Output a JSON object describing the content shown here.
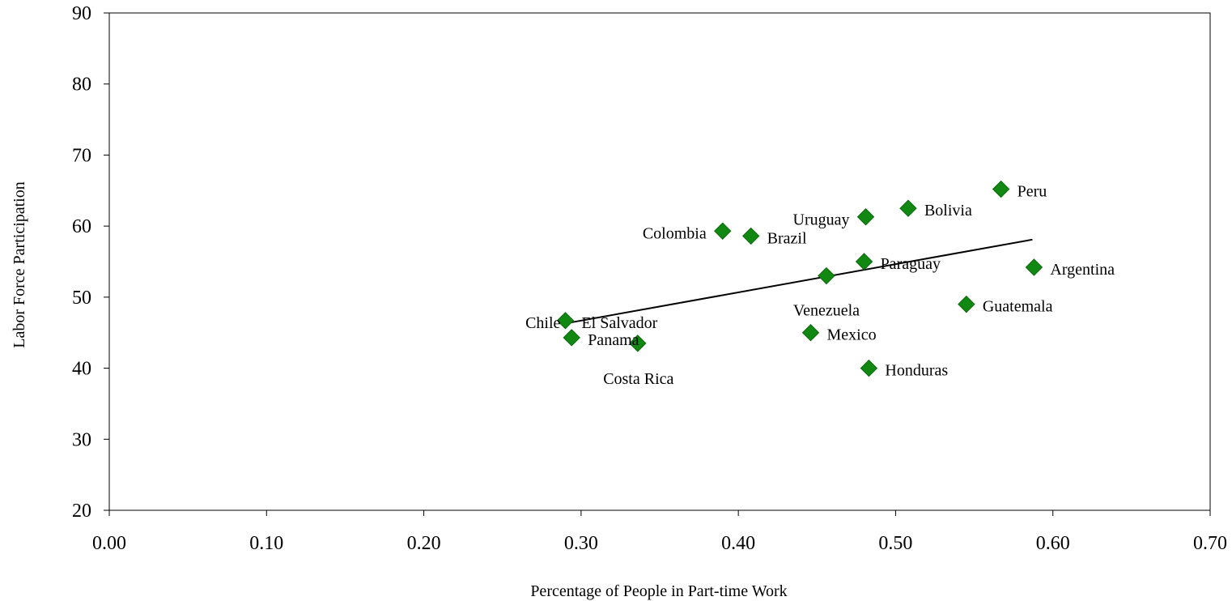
{
  "chart_data": {
    "type": "scatter",
    "title": "",
    "xlabel": "Percentage of People in Part-time Work",
    "ylabel": "Labor Force Participation",
    "xlim": [
      0.0,
      0.7
    ],
    "ylim": [
      20,
      90
    ],
    "x_ticks": [
      "0.00",
      "0.10",
      "0.20",
      "0.30",
      "0.40",
      "0.50",
      "0.60",
      "0.70"
    ],
    "y_ticks": [
      "20",
      "30",
      "40",
      "50",
      "60",
      "70",
      "80",
      "90"
    ],
    "grid": false,
    "legend": "none",
    "marker": "diamond",
    "marker_color": "#118811",
    "trendline": {
      "x": [
        0.29,
        0.587
      ],
      "y": [
        46.3,
        58.1
      ],
      "color": "#000000"
    },
    "points": [
      {
        "label": "Chile",
        "x": 0.29,
        "y": 46.7
      },
      {
        "label": "El Salvador",
        "x": 0.29,
        "y": 46.7
      },
      {
        "label": "Panama",
        "x": 0.294,
        "y": 44.3
      },
      {
        "label": "Costa Rica",
        "x": 0.336,
        "y": 43.5
      },
      {
        "label": "Colombia",
        "x": 0.39,
        "y": 59.3
      },
      {
        "label": "Brazil",
        "x": 0.408,
        "y": 58.6
      },
      {
        "label": "Mexico",
        "x": 0.446,
        "y": 45.0
      },
      {
        "label": "Venezuela",
        "x": 0.456,
        "y": 53.0
      },
      {
        "label": "Paraguay",
        "x": 0.48,
        "y": 55.0
      },
      {
        "label": "Uruguay",
        "x": 0.481,
        "y": 61.3
      },
      {
        "label": "Honduras",
        "x": 0.483,
        "y": 40.0
      },
      {
        "label": "Bolivia",
        "x": 0.508,
        "y": 62.5
      },
      {
        "label": "Guatemala",
        "x": 0.545,
        "y": 49.0
      },
      {
        "label": "Peru",
        "x": 0.567,
        "y": 65.2
      },
      {
        "label": "Argentina",
        "x": 0.588,
        "y": 54.2
      }
    ]
  }
}
